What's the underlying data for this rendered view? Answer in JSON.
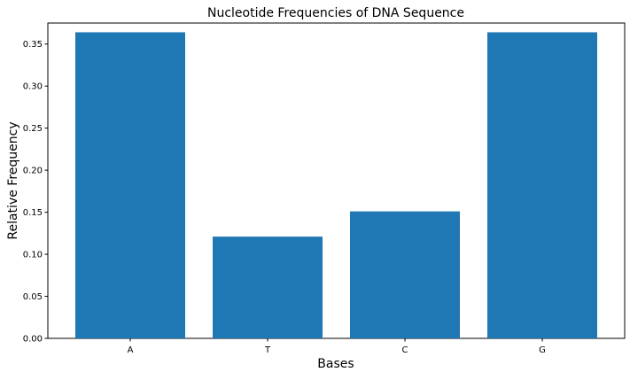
{
  "chart_data": {
    "type": "bar",
    "title": "Nucleotide Frequencies of DNA Sequence",
    "xlabel": "Bases",
    "ylabel": "Relative Frequency",
    "categories": [
      "A",
      "T",
      "C",
      "G"
    ],
    "values": [
      0.364,
      0.121,
      0.151,
      0.364
    ],
    "ylim": [
      0,
      0.375
    ],
    "yticks": [
      0.0,
      0.05,
      0.1,
      0.15,
      0.2,
      0.25,
      0.3,
      0.35
    ],
    "ytick_labels": [
      "0.00",
      "0.05",
      "0.10",
      "0.15",
      "0.20",
      "0.25",
      "0.30",
      "0.35"
    ],
    "bar_color": "#1f77b4",
    "grid": false,
    "legend": "none"
  }
}
